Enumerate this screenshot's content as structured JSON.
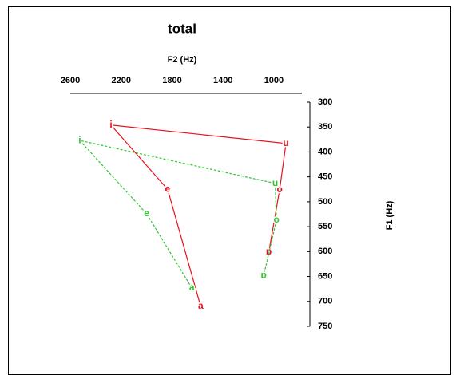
{
  "chart_data": {
    "type": "line",
    "title": "total",
    "x_label": "F2 (Hz)",
    "y_label": "F1 (Hz)",
    "xlim": [
      2600,
      780
    ],
    "xticks": [
      2600,
      2200,
      1800,
      1400,
      1000
    ],
    "x_axis_position": "top",
    "x_reversed": true,
    "ylim": [
      300,
      750
    ],
    "yticks": [
      300,
      350,
      400,
      450,
      500,
      550,
      600,
      650,
      700,
      750
    ],
    "y_axis_position": "right",
    "y_reversed": true,
    "series": [
      {
        "color": "#e8101a",
        "dashed": false,
        "labels": [
          "a",
          "e",
          "i",
          "u",
          "o",
          "ɒ"
        ],
        "x": [
          1575,
          1835,
          2280,
          905,
          955,
          1040
        ],
        "values": [
          710,
          475,
          346,
          383,
          476,
          601
        ]
      },
      {
        "color": "#2ec82e",
        "dashed": true,
        "labels": [
          "a",
          "e",
          "i",
          "u",
          "o",
          "ɒ"
        ],
        "x": [
          1645,
          2000,
          2525,
          990,
          980,
          1080
        ],
        "values": [
          673,
          524,
          377,
          463,
          537,
          648
        ]
      }
    ]
  }
}
